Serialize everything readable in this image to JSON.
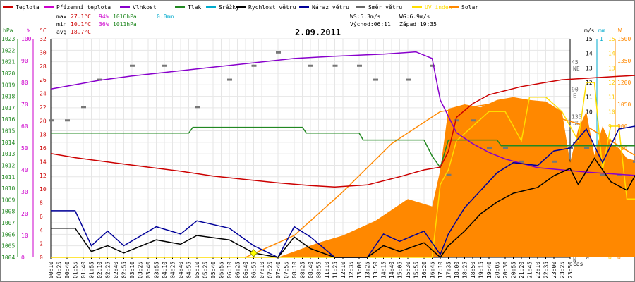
{
  "chart_data": {
    "type": "line",
    "title": "2.09.2011",
    "xlabel": "čas",
    "legend": [
      {
        "name": "Teplota",
        "color": "#cc0000"
      },
      {
        "name": "Přízemní teplota",
        "color": "#cc00cc"
      },
      {
        "name": "Vlhkost",
        "color": "#8800cc"
      },
      {
        "name": "Tlak",
        "color": "#228822"
      },
      {
        "name": "Srážky",
        "color": "#00aacc"
      },
      {
        "name": "Rychlost větru",
        "color": "#000000"
      },
      {
        "name": "Náraz větru",
        "color": "#000099"
      },
      {
        "name": "Směr větru",
        "color": "#666666"
      },
      {
        "name": "UV index",
        "color": "#ffdd00"
      },
      {
        "name": "Solar",
        "color": "#ff8800"
      }
    ],
    "stats": {
      "max_label": "max",
      "max_temp": "27.1°C",
      "max_hum": "94%",
      "max_press": "1016hPa",
      "rain": "0.0mm",
      "min_label": "min",
      "min_temp": "10.1°C",
      "min_hum": "36%",
      "min_press": "1011hPa",
      "avg_label": "avg",
      "avg_temp": "18.7°C",
      "ws": "WS:5.3m/s",
      "wg": "WG:6.9m/s",
      "sunrise": "Východ:06:11",
      "sunset": "Západ:19:35"
    },
    "axes": {
      "hpa": {
        "unit": "hPa",
        "min": 1004,
        "max": 1023,
        "color": "#228822"
      },
      "hum": {
        "unit": "%",
        "min": 0,
        "max": 100,
        "step": 10,
        "color": "#cc00cc"
      },
      "temp": {
        "unit": "°C",
        "min": 0,
        "max": 32,
        "step": 2,
        "color": "#cc0000"
      },
      "ms": {
        "unit": "m/s",
        "min": 0,
        "max": 15,
        "step": 1,
        "color": "#000000"
      },
      "mm": {
        "unit": "mm",
        "tick": "1",
        "color": "#00aacc"
      },
      "w": {
        "unit": "W",
        "min": 0,
        "max": 1500,
        "step": 150,
        "color": "#ff8800"
      },
      "uv": {
        "min": 0,
        "max": 15,
        "step": 1,
        "color": "#ffcc00"
      },
      "dir": {
        "ticks": [
          [
            "360",
            "N",
            0
          ],
          [
            "315",
            "NW",
            45
          ],
          [
            "270",
            "W",
            90
          ],
          [
            "225",
            "SW",
            135
          ],
          [
            "180",
            "S",
            180
          ],
          [
            "135",
            "SE",
            225
          ],
          [
            "90",
            "E",
            270
          ],
          [
            "45",
            "NE",
            315
          ]
        ]
      }
    },
    "x_ticks": [
      "00:10",
      "00:25",
      "00:40",
      "01:55",
      "01:40",
      "01:55",
      "02:10",
      "02:25",
      "02:40",
      "02:55",
      "03:10",
      "03:25",
      "03:40",
      "03:55",
      "04:10",
      "04:25",
      "04:40",
      "04:55",
      "05:10",
      "05:25",
      "05:40",
      "05:55",
      "06:10",
      "06:25",
      "06:40",
      "06:55",
      "07:10",
      "07:25",
      "07:40",
      "07:55",
      "08:10",
      "08:25",
      "08:40",
      "08:55",
      "11:10",
      "11:25",
      "12:10",
      "12:35",
      "13:00",
      "13:25",
      "13:50",
      "14:15",
      "14:40",
      "15:05",
      "15:30",
      "15:55",
      "16:20",
      "16:45",
      "17:10",
      "17:35",
      "18:00",
      "18:25",
      "18:50",
      "19:15",
      "19:40",
      "20:05",
      "20:30",
      "20:55",
      "21:20",
      "21:45",
      "22:10",
      "22:35",
      "23:00",
      "23:25",
      "23:50"
    ],
    "series": {
      "temperature": [
        [
          0,
          15.2
        ],
        [
          3,
          14.6
        ],
        [
          8,
          13.8
        ],
        [
          12,
          13.2
        ],
        [
          16,
          12.6
        ],
        [
          20,
          11.9
        ],
        [
          24,
          11.4
        ],
        [
          28,
          10.9
        ],
        [
          32,
          10.5
        ],
        [
          35,
          10.3
        ],
        [
          39,
          10.6
        ],
        [
          43,
          11.8
        ],
        [
          46,
          12.8
        ],
        [
          48,
          13.2
        ],
        [
          49,
          15.5
        ],
        [
          50,
          20.5
        ],
        [
          52,
          22.5
        ],
        [
          54,
          23.8
        ],
        [
          58,
          25.0
        ],
        [
          63,
          26.0
        ],
        [
          70,
          26.5
        ],
        [
          76,
          26.9
        ],
        [
          80,
          26.5
        ],
        [
          86,
          24.8
        ],
        [
          92,
          22.1
        ],
        [
          96,
          20.0
        ],
        [
          100,
          18.5
        ],
        [
          103,
          17.8
        ],
        [
          108,
          17.3
        ],
        [
          111,
          17.0
        ]
      ],
      "humidity": [
        [
          0,
          77
        ],
        [
          3,
          79
        ],
        [
          6,
          81
        ],
        [
          10,
          83
        ],
        [
          15,
          85
        ],
        [
          20,
          87
        ],
        [
          25,
          89
        ],
        [
          30,
          91
        ],
        [
          35,
          92
        ],
        [
          41,
          93
        ],
        [
          45,
          94
        ],
        [
          47,
          91
        ],
        [
          48,
          72
        ],
        [
          50,
          57
        ],
        [
          52,
          52
        ],
        [
          54,
          48
        ],
        [
          56,
          45
        ],
        [
          58,
          43
        ],
        [
          60,
          41
        ],
        [
          63,
          40
        ],
        [
          66,
          39
        ],
        [
          70,
          38
        ],
        [
          74,
          37
        ],
        [
          78,
          37
        ],
        [
          82,
          38
        ],
        [
          86,
          40
        ],
        [
          90,
          42
        ],
        [
          94,
          45
        ],
        [
          98,
          49
        ],
        [
          102,
          53
        ],
        [
          106,
          57
        ],
        [
          108,
          58
        ],
        [
          111,
          60
        ]
      ],
      "pressure": [
        [
          0,
          1014.8
        ],
        [
          17,
          1014.8
        ],
        [
          17.5,
          1015.3
        ],
        [
          31,
          1015.3
        ],
        [
          31.5,
          1014.8
        ],
        [
          38,
          1014.8
        ],
        [
          38.5,
          1014.2
        ],
        [
          46,
          1014.2
        ],
        [
          47,
          1012.8
        ],
        [
          48,
          1011.8
        ],
        [
          49,
          1014.2
        ],
        [
          55,
          1014.2
        ],
        [
          55.5,
          1013.7
        ],
        [
          73,
          1013.7
        ],
        [
          73.5,
          1012.7
        ],
        [
          88,
          1012.7
        ],
        [
          88.5,
          1013.2
        ],
        [
          93,
          1013.2
        ],
        [
          93.5,
          1013.7
        ],
        [
          100,
          1013.7
        ],
        [
          100.5,
          1014.2
        ],
        [
          111,
          1014.2
        ]
      ],
      "wind_speed": [
        [
          0,
          2.0
        ],
        [
          3,
          2.0
        ],
        [
          4,
          1.2
        ],
        [
          5,
          0.4
        ],
        [
          7,
          0.8
        ],
        [
          9,
          0.3
        ],
        [
          13,
          1.2
        ],
        [
          16,
          0.9
        ],
        [
          18,
          1.5
        ],
        [
          22,
          1.2
        ],
        [
          25,
          0.3
        ],
        [
          28,
          0.0
        ],
        [
          30,
          1.4
        ],
        [
          32,
          0.6
        ],
        [
          35,
          0.0
        ],
        [
          39,
          0.0
        ],
        [
          41,
          0.8
        ],
        [
          43,
          0.4
        ],
        [
          46,
          1.0
        ],
        [
          48,
          0.0
        ],
        [
          49,
          0.8
        ],
        [
          51,
          1.8
        ],
        [
          53,
          3.0
        ],
        [
          55,
          3.8
        ],
        [
          57,
          4.4
        ],
        [
          60,
          4.8
        ],
        [
          62,
          5.6
        ],
        [
          64,
          6.1
        ],
        [
          65,
          5.0
        ],
        [
          67,
          6.8
        ],
        [
          69,
          5.2
        ],
        [
          71,
          4.6
        ],
        [
          73,
          6.6
        ],
        [
          75,
          4.0
        ],
        [
          77,
          3.2
        ],
        [
          80,
          3.6
        ],
        [
          84,
          2.8
        ],
        [
          88,
          3.5
        ],
        [
          90,
          4.6
        ],
        [
          92,
          3.7
        ],
        [
          95,
          3.2
        ],
        [
          97,
          2.3
        ],
        [
          99,
          3.4
        ],
        [
          102,
          2.2
        ],
        [
          104,
          1.2
        ],
        [
          106,
          1.2
        ],
        [
          108,
          1.8
        ],
        [
          111,
          2.2
        ]
      ],
      "wind_gust": [
        [
          0,
          3.2
        ],
        [
          3,
          3.2
        ],
        [
          4,
          2.0
        ],
        [
          5,
          0.8
        ],
        [
          7,
          1.8
        ],
        [
          9,
          0.8
        ],
        [
          13,
          2.1
        ],
        [
          16,
          1.6
        ],
        [
          18,
          2.5
        ],
        [
          22,
          2.0
        ],
        [
          25,
          0.8
        ],
        [
          28,
          0.0
        ],
        [
          30,
          2.1
        ],
        [
          32,
          1.4
        ],
        [
          35,
          0.0
        ],
        [
          39,
          0.0
        ],
        [
          41,
          1.6
        ],
        [
          43,
          1.1
        ],
        [
          46,
          1.8
        ],
        [
          48,
          0.2
        ],
        [
          49,
          1.6
        ],
        [
          51,
          3.4
        ],
        [
          53,
          4.6
        ],
        [
          55,
          5.8
        ],
        [
          57,
          6.5
        ],
        [
          60,
          6.3
        ],
        [
          62,
          7.3
        ],
        [
          64,
          7.5
        ],
        [
          66,
          8.8
        ],
        [
          68,
          6.5
        ],
        [
          70,
          8.8
        ],
        [
          72,
          9.0
        ],
        [
          74,
          6.0
        ],
        [
          76,
          5.5
        ],
        [
          80,
          5.6
        ],
        [
          84,
          4.8
        ],
        [
          88,
          5.4
        ],
        [
          90,
          6.6
        ],
        [
          92,
          5.4
        ],
        [
          95,
          4.4
        ],
        [
          97,
          3.1
        ],
        [
          99,
          4.7
        ],
        [
          102,
          3.4
        ],
        [
          104,
          2.2
        ],
        [
          106,
          2.3
        ],
        [
          108,
          3.1
        ],
        [
          111,
          3.0
        ]
      ],
      "wind_dir": [
        [
          0,
          225
        ],
        [
          2,
          225
        ],
        [
          4,
          247
        ],
        [
          6,
          292
        ],
        [
          10,
          315
        ],
        [
          14,
          315
        ],
        [
          18,
          247
        ],
        [
          22,
          292
        ],
        [
          25,
          315
        ],
        [
          28,
          337
        ],
        [
          32,
          315
        ],
        [
          35,
          315
        ],
        [
          38,
          315
        ],
        [
          40,
          292
        ],
        [
          44,
          292
        ],
        [
          47,
          315
        ],
        [
          49,
          135
        ],
        [
          50,
          225
        ],
        [
          52,
          225
        ],
        [
          54,
          180
        ],
        [
          56,
          180
        ],
        [
          58,
          157
        ],
        [
          62,
          157
        ],
        [
          64,
          180
        ],
        [
          66,
          180
        ],
        [
          68,
          135
        ],
        [
          70,
          135
        ],
        [
          72,
          157
        ],
        [
          76,
          157
        ],
        [
          78,
          135
        ],
        [
          80,
          135
        ],
        [
          84,
          180
        ],
        [
          88,
          180
        ],
        [
          90,
          157
        ],
        [
          92,
          157
        ],
        [
          94,
          157
        ],
        [
          96,
          135
        ],
        [
          98,
          135
        ],
        [
          100,
          157
        ],
        [
          102,
          157
        ],
        [
          104,
          157
        ],
        [
          106,
          157
        ],
        [
          108,
          135
        ],
        [
          111,
          135
        ]
      ],
      "uv": [
        [
          0,
          0
        ],
        [
          47,
          0
        ],
        [
          48,
          5
        ],
        [
          49,
          6
        ],
        [
          50,
          8
        ],
        [
          52,
          9
        ],
        [
          54,
          10
        ],
        [
          56,
          10
        ],
        [
          58,
          8
        ],
        [
          59,
          11
        ],
        [
          61,
          11
        ],
        [
          63,
          10
        ],
        [
          65,
          8
        ],
        [
          66,
          12
        ],
        [
          67,
          12
        ],
        [
          68,
          6
        ],
        [
          69,
          9
        ],
        [
          70,
          9
        ],
        [
          71,
          4
        ],
        [
          73,
          4
        ],
        [
          75,
          3
        ],
        [
          77,
          3
        ],
        [
          78,
          1
        ],
        [
          79,
          3
        ],
        [
          80,
          2
        ],
        [
          81,
          0
        ],
        [
          111,
          0
        ]
      ],
      "solar": [
        [
          24,
          0
        ],
        [
          28,
          0
        ],
        [
          33,
          100
        ],
        [
          36,
          150
        ],
        [
          40,
          250
        ],
        [
          44,
          400
        ],
        [
          47,
          350
        ],
        [
          48,
          600
        ],
        [
          49,
          1020
        ],
        [
          51,
          1050
        ],
        [
          53,
          1030
        ],
        [
          55,
          1080
        ],
        [
          57,
          1100
        ],
        [
          59,
          1080
        ],
        [
          61,
          1070
        ],
        [
          63,
          1000
        ],
        [
          64,
          650
        ],
        [
          65,
          880
        ],
        [
          66,
          1000
        ],
        [
          67,
          700
        ],
        [
          68,
          900
        ],
        [
          69,
          780
        ],
        [
          70,
          750
        ],
        [
          71,
          680
        ],
        [
          73,
          650
        ],
        [
          75,
          420
        ],
        [
          77,
          360
        ],
        [
          79,
          380
        ],
        [
          81,
          200
        ],
        [
          83,
          140
        ],
        [
          85,
          50
        ],
        [
          87,
          0
        ]
      ],
      "solar_theoretical": [
        [
          24,
          0
        ],
        [
          30,
          150
        ],
        [
          36,
          450
        ],
        [
          42,
          780
        ],
        [
          48,
          1000
        ],
        [
          54,
          1050
        ],
        [
          60,
          1000
        ],
        [
          66,
          900
        ],
        [
          72,
          700
        ],
        [
          78,
          480
        ],
        [
          83,
          230
        ],
        [
          87,
          0
        ]
      ],
      "sun_markers": [
        [
          25,
          0
        ],
        [
          87,
          0
        ]
      ]
    }
  }
}
